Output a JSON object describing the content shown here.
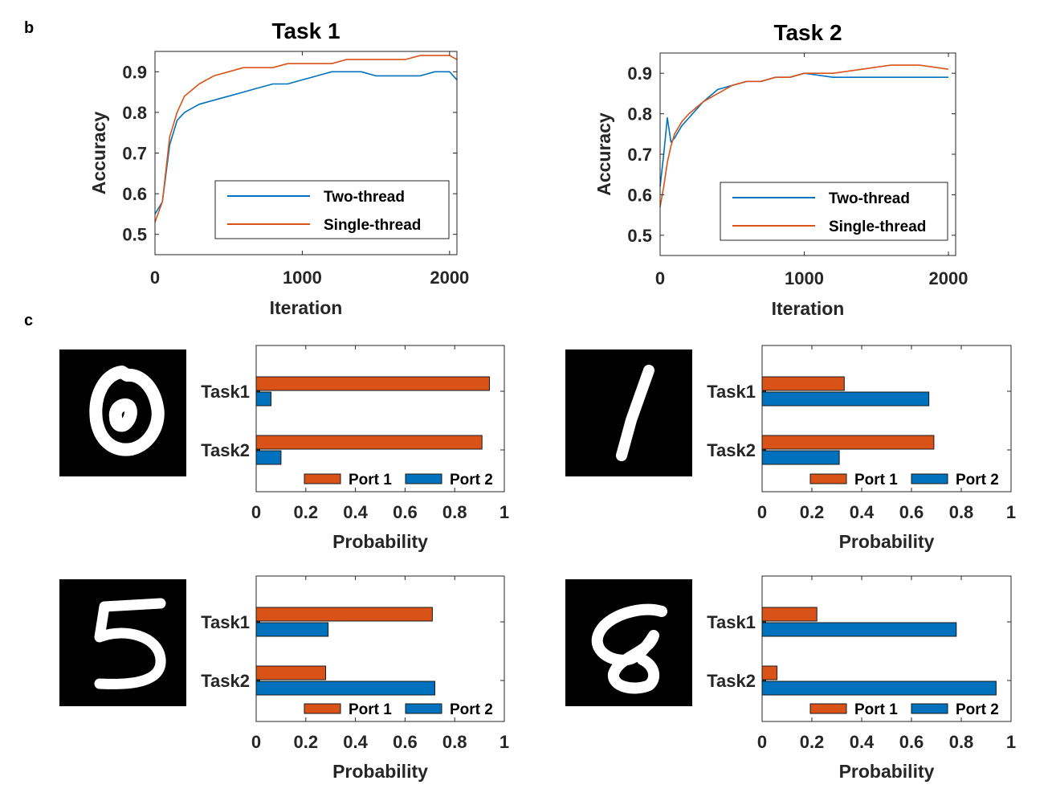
{
  "panels": {
    "b": "b",
    "c": "c"
  },
  "chart_data": [
    {
      "type": "line",
      "title": "Task 1",
      "xlabel": "Iteration",
      "ylabel": "Accuracy",
      "xlim": [
        0,
        2050
      ],
      "ylim": [
        0.45,
        0.95
      ],
      "xticks": [
        0,
        1000,
        2000
      ],
      "yticks": [
        0.5,
        0.6,
        0.7,
        0.8,
        0.9
      ],
      "legend_position": "bottom-right",
      "series": [
        {
          "name": "Two-thread",
          "color": "#0072BD",
          "x": [
            0,
            50,
            100,
            150,
            200,
            300,
            400,
            500,
            600,
            700,
            800,
            900,
            1000,
            1100,
            1200,
            1300,
            1400,
            1500,
            1600,
            1700,
            1800,
            1900,
            2000,
            2050
          ],
          "y": [
            0.55,
            0.58,
            0.72,
            0.78,
            0.8,
            0.82,
            0.83,
            0.84,
            0.85,
            0.86,
            0.87,
            0.87,
            0.88,
            0.89,
            0.9,
            0.9,
            0.9,
            0.89,
            0.89,
            0.89,
            0.89,
            0.9,
            0.9,
            0.88
          ]
        },
        {
          "name": "Single-thread",
          "color": "#D95319",
          "x": [
            0,
            50,
            100,
            150,
            200,
            300,
            400,
            500,
            600,
            700,
            800,
            900,
            1000,
            1100,
            1200,
            1300,
            1400,
            1500,
            1600,
            1700,
            1800,
            1900,
            2000,
            2050
          ],
          "y": [
            0.53,
            0.58,
            0.74,
            0.8,
            0.84,
            0.87,
            0.89,
            0.9,
            0.91,
            0.91,
            0.91,
            0.92,
            0.92,
            0.92,
            0.92,
            0.93,
            0.93,
            0.93,
            0.93,
            0.93,
            0.94,
            0.94,
            0.94,
            0.93
          ]
        }
      ]
    },
    {
      "type": "line",
      "title": "Task 2",
      "xlabel": "Iteration",
      "ylabel": "Accuracy",
      "xlim": [
        0,
        2050
      ],
      "ylim": [
        0.45,
        0.95
      ],
      "xticks": [
        0,
        1000,
        2000
      ],
      "yticks": [
        0.5,
        0.6,
        0.7,
        0.8,
        0.9
      ],
      "legend_position": "bottom-right",
      "series": [
        {
          "name": "Two-thread",
          "color": "#0072BD",
          "x": [
            0,
            25,
            50,
            75,
            100,
            150,
            200,
            300,
            400,
            500,
            600,
            700,
            800,
            900,
            1000,
            1200,
            1400,
            1600,
            1800,
            2000
          ],
          "y": [
            0.62,
            0.7,
            0.79,
            0.73,
            0.74,
            0.77,
            0.79,
            0.83,
            0.86,
            0.87,
            0.88,
            0.88,
            0.89,
            0.89,
            0.9,
            0.89,
            0.89,
            0.89,
            0.89,
            0.89
          ]
        },
        {
          "name": "Single-thread",
          "color": "#D95319",
          "x": [
            0,
            25,
            50,
            75,
            100,
            150,
            200,
            300,
            400,
            500,
            600,
            700,
            800,
            900,
            1000,
            1200,
            1400,
            1600,
            1800,
            2000
          ],
          "y": [
            0.57,
            0.62,
            0.68,
            0.72,
            0.75,
            0.78,
            0.8,
            0.83,
            0.85,
            0.87,
            0.88,
            0.88,
            0.89,
            0.89,
            0.9,
            0.9,
            0.91,
            0.92,
            0.92,
            0.91
          ]
        }
      ]
    },
    {
      "type": "bar",
      "orientation": "horizontal",
      "digit": "0",
      "categories": [
        "Task1",
        "Task2"
      ],
      "xlabel": "Probability",
      "xlim": [
        0,
        1
      ],
      "xticks": [
        0,
        0.2,
        0.4,
        0.6,
        0.8,
        1
      ],
      "xtick_labels": [
        "0",
        "0.2",
        "0.4",
        "0.6",
        "0.8",
        "1"
      ],
      "legend_position": "bottom-right",
      "series": [
        {
          "name": "Port 1",
          "color": "#D95319",
          "values": [
            0.94,
            0.91
          ]
        },
        {
          "name": "Port 2",
          "color": "#0072BD",
          "values": [
            0.06,
            0.1
          ]
        }
      ]
    },
    {
      "type": "bar",
      "orientation": "horizontal",
      "digit": "1",
      "categories": [
        "Task1",
        "Task2"
      ],
      "xlabel": "Probability",
      "xlim": [
        0,
        1
      ],
      "xticks": [
        0,
        0.2,
        0.4,
        0.6,
        0.8,
        1
      ],
      "xtick_labels": [
        "0",
        "0.2",
        "0.4",
        "0.6",
        "0.8",
        "1"
      ],
      "legend_position": "bottom-right",
      "series": [
        {
          "name": "Port 1",
          "color": "#D95319",
          "values": [
            0.33,
            0.69
          ]
        },
        {
          "name": "Port 2",
          "color": "#0072BD",
          "values": [
            0.67,
            0.31
          ]
        }
      ]
    },
    {
      "type": "bar",
      "orientation": "horizontal",
      "digit": "5",
      "categories": [
        "Task1",
        "Task2"
      ],
      "xlabel": "Probability",
      "xlim": [
        0,
        1
      ],
      "xticks": [
        0,
        0.2,
        0.4,
        0.6,
        0.8,
        1
      ],
      "xtick_labels": [
        "0",
        "0.2",
        "0.4",
        "0.6",
        "0.8",
        "1"
      ],
      "legend_position": "bottom-right",
      "series": [
        {
          "name": "Port 1",
          "color": "#D95319",
          "values": [
            0.71,
            0.28
          ]
        },
        {
          "name": "Port 2",
          "color": "#0072BD",
          "values": [
            0.29,
            0.72
          ]
        }
      ]
    },
    {
      "type": "bar",
      "orientation": "horizontal",
      "digit": "8",
      "categories": [
        "Task1",
        "Task2"
      ],
      "xlabel": "Probability",
      "xlim": [
        0,
        1
      ],
      "xticks": [
        0,
        0.2,
        0.4,
        0.6,
        0.8,
        1
      ],
      "xtick_labels": [
        "0",
        "0.2",
        "0.4",
        "0.6",
        "0.8",
        "1"
      ],
      "legend_position": "bottom-right",
      "series": [
        {
          "name": "Port 1",
          "color": "#D95319",
          "values": [
            0.22,
            0.06
          ]
        },
        {
          "name": "Port 2",
          "color": "#0072BD",
          "values": [
            0.78,
            0.94
          ]
        }
      ]
    }
  ]
}
